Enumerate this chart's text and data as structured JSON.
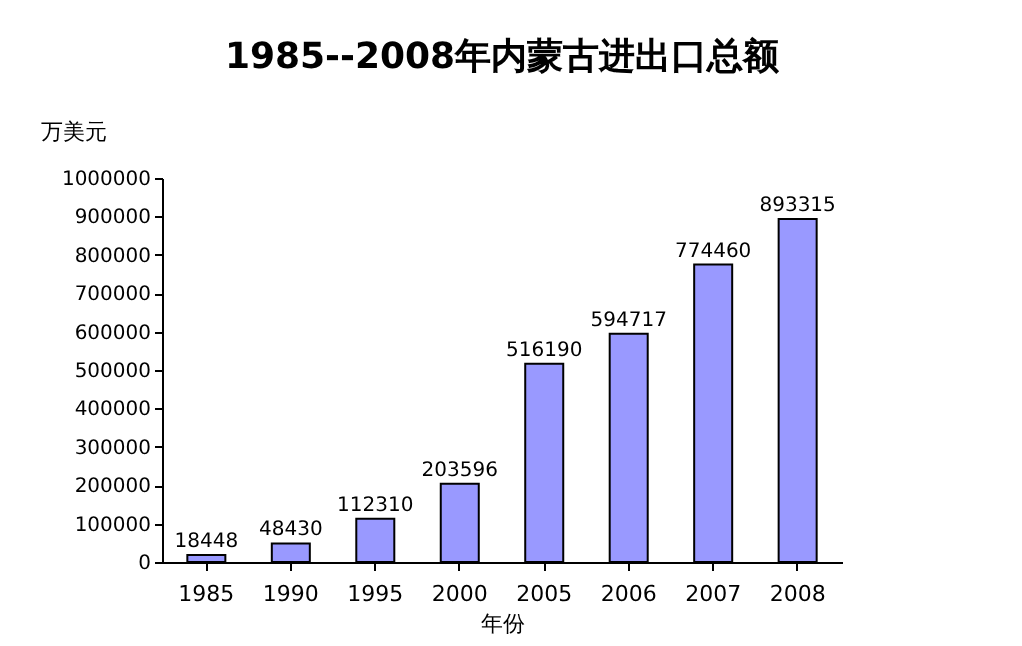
{
  "chart_data": {
    "type": "bar",
    "title": "1985--2008年内蒙古进出口总额",
    "xlabel": "年份",
    "ylabel": "万美元",
    "categories": [
      "1985",
      "1990",
      "1995",
      "2000",
      "2005",
      "2006",
      "2007",
      "2008"
    ],
    "values": [
      18448,
      48430,
      112310,
      203596,
      516190,
      594717,
      774460,
      893315
    ],
    "color": "#9999ff",
    "ylim": [
      0,
      1000000
    ],
    "yticks": [
      0,
      100000,
      200000,
      300000,
      400000,
      500000,
      600000,
      700000,
      800000,
      900000,
      1000000
    ],
    "data_labels": true,
    "grid": false
  }
}
